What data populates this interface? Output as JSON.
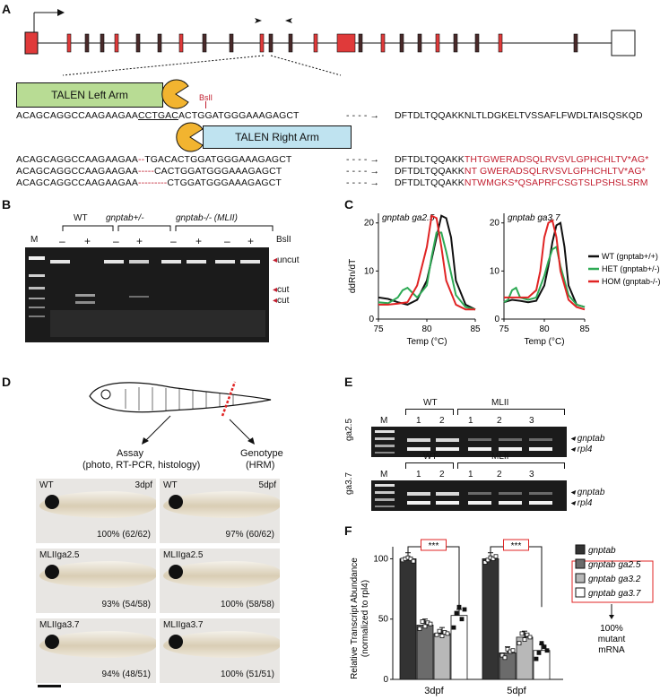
{
  "panels": {
    "A": "A",
    "B": "B",
    "C": "C",
    "D": "D",
    "E": "E",
    "F": "F"
  },
  "panelA": {
    "talen_left": "TALEN Left Arm",
    "talen_right": "TALEN Right Arm",
    "site": "BslI",
    "wt_seq_pre": "ACAGCAGGCCAAGAAGAA",
    "wt_seq_site": "CCTGAC",
    "wt_seq_post": "ACTGGATGGGAAAGAGCT",
    "wt_protein": "DFTDLTQQAKKNLTLDGKELTVSSAFLFWDLTAISQSKQD",
    "mutants": [
      {
        "pre": "ACAGCAGGCCAAGAAGAA",
        "del": "--",
        "post": "TGACACTGGATGGGAAAGAGCT",
        "prot_black": "DFTDLTQQAKK",
        "prot_red": "THTGWERADSQLRVSVLGPHCHLTV*AG*"
      },
      {
        "pre": "ACAGCAGGCCAAGAAGAA",
        "del": "-----",
        "post": "CACTGGATGGGAAAGAGCT",
        "prot_black": "DFTDLTQQAKK",
        "prot_red": "NT GWERADSQLRVSVLGPHCHLTV*AG*"
      },
      {
        "pre": "ACAGCAGGCCAAGAAGAA",
        "del": "---------",
        "post": "CTGGATGGGAAAGAGCT",
        "prot_black": "DFTDLTQQAKK",
        "prot_red": "NTWMGKS*QSAPRFCSGTSLPSHSLSRM"
      }
    ]
  },
  "panelB": {
    "marker": "M",
    "groups": [
      "WT",
      "gnptab+/-",
      "gnptab-/- (MLII)"
    ],
    "lanes": [
      "–",
      "+",
      "–",
      "+",
      "–",
      "+",
      "–",
      "+"
    ],
    "enzyme": "BslI",
    "bands": [
      "uncut",
      "cut",
      "cut"
    ]
  },
  "panelC": {
    "ylabel": "ddRn/dT",
    "xlabel": "Temp (°C)",
    "left_title": "gnptab ga2.5",
    "right_title": "gnptab ga3.7",
    "yticks": [
      "0",
      "10",
      "20"
    ],
    "xticks": [
      "75",
      "80",
      "85"
    ],
    "legend": [
      "WT (gnptab+/+)",
      "HET (gnptab+/-)",
      "HOM (gnptab-/-)"
    ],
    "legend_colors": [
      "#111111",
      "#2eaa55",
      "#e02424"
    ]
  },
  "panelD": {
    "assay": "Assay",
    "assay_sub": "(photo, RT-PCR, histology)",
    "genotype": "Genotype",
    "genotype_sub": "(HRM)",
    "cells": [
      {
        "label": "WT",
        "stage": "3dpf",
        "pct": "100% (62/62)"
      },
      {
        "label": "WT",
        "stage": "5dpf",
        "pct": "97% (60/62)"
      },
      {
        "label": "MLIIga2.5",
        "stage": "",
        "pct": "93% (54/58)"
      },
      {
        "label": "MLIIga2.5",
        "stage": "",
        "pct": "100% (58/58)"
      },
      {
        "label": "MLIIga3.7",
        "stage": "",
        "pct": "94% (48/51)"
      },
      {
        "label": "MLIIga3.7",
        "stage": "",
        "pct": "100% (51/51)"
      }
    ]
  },
  "panelE": {
    "marker": "M",
    "row_labels": [
      "ga2.5",
      "ga3.7"
    ],
    "group_wt": "WT",
    "group_mlii": "MLII",
    "lanes": [
      "1",
      "2",
      "1",
      "2",
      "3"
    ],
    "band_top": "gnptab",
    "band_bottom": "rpl4"
  },
  "panelF": {
    "ylabel": "Relative Transcript Abundance",
    "ylabel2": "(normalized to rpl4)",
    "yticks": [
      "0",
      "50",
      "100"
    ],
    "groups": [
      "3dpf",
      "5dpf"
    ],
    "significance": "***",
    "legend": [
      "gnptab",
      "gnptab ga2.5",
      "gnptab ga3.2",
      "gnptab ga3.7"
    ],
    "note": [
      "100%",
      "mutant",
      "mRNA"
    ]
  },
  "chart_data": [
    {
      "type": "line",
      "title": "gnptab ga2.5",
      "xlabel": "Temp (°C)",
      "ylabel": "ddRn/dT",
      "xlim": [
        75,
        85
      ],
      "ylim": [
        0,
        22
      ],
      "series": [
        {
          "name": "WT (gnptab+/+)",
          "color": "#111111",
          "x": [
            75,
            76,
            77,
            78,
            79,
            80,
            81,
            81.5,
            82,
            82.5,
            83,
            84,
            85
          ],
          "y": [
            4.5,
            4.2,
            3.5,
            3,
            4,
            8,
            17,
            21.5,
            21,
            17,
            8,
            3,
            2
          ]
        },
        {
          "name": "HET (gnptab+/-)",
          "color": "#2eaa55",
          "x": [
            75,
            76,
            77,
            77.5,
            78,
            78.5,
            79,
            80,
            80.5,
            81,
            81.5,
            82,
            83,
            84,
            85
          ],
          "y": [
            3.5,
            3.3,
            4.5,
            6,
            6.5,
            5.5,
            4.5,
            7,
            13,
            18,
            18,
            14,
            5,
            2.5,
            2
          ]
        },
        {
          "name": "HOM (gnptab-/-)",
          "color": "#e02424",
          "x": [
            75,
            76,
            77,
            78,
            79,
            80,
            80.5,
            81,
            81.5,
            82,
            83,
            84,
            85
          ],
          "y": [
            3,
            3,
            3.2,
            3.5,
            7,
            15,
            21.5,
            21,
            15,
            8,
            3,
            2,
            2
          ]
        }
      ]
    },
    {
      "type": "line",
      "title": "gnptab ga3.7",
      "xlabel": "Temp (°C)",
      "ylabel": "ddRn/dT",
      "xlim": [
        75,
        85
      ],
      "ylim": [
        0,
        22
      ],
      "series": [
        {
          "name": "WT (gnptab+/+)",
          "color": "#111111",
          "x": [
            75,
            76,
            77,
            78,
            79,
            80,
            80.5,
            81,
            81.5,
            82,
            82.5,
            83,
            84,
            85
          ],
          "y": [
            3.5,
            4,
            3.8,
            3.5,
            3.8,
            7,
            11,
            16,
            19.5,
            20,
            15,
            7,
            3,
            2.5
          ]
        },
        {
          "name": "HET (gnptab+/-)",
          "color": "#2eaa55",
          "x": [
            75,
            75.5,
            76,
            76.5,
            77,
            78,
            79,
            80,
            80.5,
            81,
            81.5,
            82,
            83,
            84,
            85
          ],
          "y": [
            3.5,
            4,
            6,
            6.5,
            4.5,
            4,
            4.5,
            9,
            12,
            14.5,
            15,
            11,
            5,
            3,
            2.5
          ]
        },
        {
          "name": "HOM (gnptab-/-)",
          "color": "#e02424",
          "x": [
            75,
            76,
            77,
            78,
            79,
            79.5,
            80,
            80.5,
            81,
            81.5,
            82,
            83,
            84,
            85
          ],
          "y": [
            4.5,
            4.5,
            4.5,
            4.5,
            6,
            10,
            17,
            20,
            20.5,
            17,
            10,
            4,
            2.5,
            2
          ]
        }
      ]
    },
    {
      "type": "bar",
      "ylabel": "Relative Transcript Abundance (normalized to rpl4)",
      "categories": [
        "3dpf",
        "5dpf"
      ],
      "ylim": [
        0,
        110
      ],
      "series": [
        {
          "name": "gnptab",
          "color": "#333333",
          "values": [
            100,
            100
          ],
          "points": [
            [
              99,
              100,
              101,
              100,
              98
            ],
            [
              97,
              99,
              101,
              100,
              102
            ]
          ]
        },
        {
          "name": "gnptab ga2.5",
          "color": "#6b6b6b",
          "values": [
            45,
            22
          ],
          "points": [
            [
              42,
              48,
              44,
              47,
              46
            ],
            [
              20,
              18,
              25,
              23,
              24
            ]
          ]
        },
        {
          "name": "gnptab ga3.2",
          "color": "#b8b8b8",
          "values": [
            38,
            35
          ],
          "points": [
            [
              37,
              40,
              36,
              39,
              38
            ],
            [
              30,
              38,
              33,
              37,
              35
            ]
          ]
        },
        {
          "name": "gnptab ga3.7",
          "color": "#ffffff",
          "values": [
            53,
            24
          ],
          "points": [
            [
              43,
              55,
              60,
              50,
              58
            ],
            [
              17,
              22,
              30,
              27,
              24
            ]
          ]
        }
      ]
    }
  ]
}
